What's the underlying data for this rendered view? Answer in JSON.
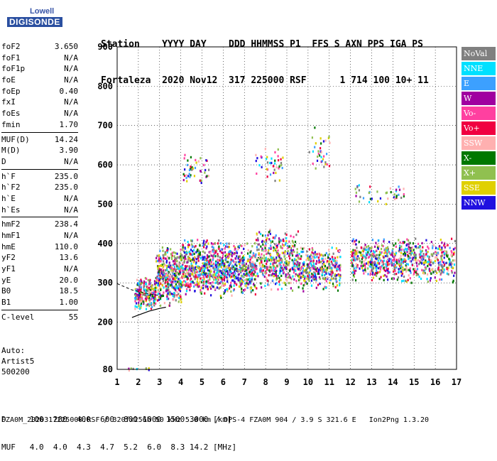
{
  "logo": {
    "brand": "Lowell",
    "name": "DIGISONDE"
  },
  "header": {
    "row1": "Station    YYYY DAY    DDD HHMMSS P1  FFS S AXN PPS IGA PS",
    "row2": "Fortaleza  2020 Nov12  317 225000 RSF      1 714 100 10+ 11"
  },
  "params": {
    "group1": [
      {
        "label": "foF2",
        "value": "3.650"
      },
      {
        "label": "foF1",
        "value": "N/A"
      },
      {
        "label": "foF1p",
        "value": "N/A"
      },
      {
        "label": "foE",
        "value": "N/A"
      },
      {
        "label": "foEp",
        "value": "0.40"
      },
      {
        "label": "fxI",
        "value": "N/A"
      },
      {
        "label": "foEs",
        "value": "N/A"
      },
      {
        "label": "fmin",
        "value": "1.70"
      }
    ],
    "group2": [
      {
        "label": "MUF(D)",
        "value": "14.24"
      },
      {
        "label": "M(D)",
        "value": "3.90"
      },
      {
        "label": "D",
        "value": "N/A"
      }
    ],
    "group3": [
      {
        "label": "h`F",
        "value": "235.0"
      },
      {
        "label": "h`F2",
        "value": "235.0"
      },
      {
        "label": "h`E",
        "value": "N/A"
      },
      {
        "label": "h`Es",
        "value": "N/A"
      }
    ],
    "group4": [
      {
        "label": "hmF2",
        "value": "238.4"
      },
      {
        "label": "hmF1",
        "value": "N/A"
      },
      {
        "label": "hmE",
        "value": "110.0"
      },
      {
        "label": "yF2",
        "value": "13.6"
      },
      {
        "label": "yF1",
        "value": "N/A"
      },
      {
        "label": "yE",
        "value": "20.0"
      },
      {
        "label": "B0",
        "value": "18.5"
      },
      {
        "label": "B1",
        "value": "1.00"
      }
    ],
    "group5": [
      {
        "label": "C-level",
        "value": "55"
      }
    ]
  },
  "auto": {
    "line1": "Auto:",
    "line2": "Artist5",
    "line3": "500200"
  },
  "legend": [
    {
      "label": "NoVal",
      "color": "#808080"
    },
    {
      "label": "NNE",
      "color": "#00e0ff"
    },
    {
      "label": "E",
      "color": "#3ca0ff"
    },
    {
      "label": "W",
      "color": "#a000a0"
    },
    {
      "label": "Vo-",
      "color": "#ff40a0"
    },
    {
      "label": "Vo+",
      "color": "#f00040"
    },
    {
      "label": "SSW",
      "color": "#ffb0b0"
    },
    {
      "label": "X-",
      "color": "#007800"
    },
    {
      "label": "X+",
      "color": "#90c050"
    },
    {
      "label": "SSE",
      "color": "#e0d000"
    },
    {
      "label": "NNW",
      "color": "#2010e0"
    }
  ],
  "chart_data": {
    "type": "scatter",
    "title": "",
    "xlabel": "",
    "ylabel": "",
    "xlim": [
      1,
      17
    ],
    "ylim": [
      80,
      900
    ],
    "x_ticks": [
      1,
      2,
      3,
      4,
      5,
      6,
      7,
      8,
      9,
      10,
      11,
      12,
      13,
      14,
      15,
      16,
      17
    ],
    "y_ticks": [
      80,
      200,
      300,
      400,
      500,
      600,
      700,
      800,
      900
    ],
    "grid": true,
    "legend_position": "right",
    "trace_line": [
      [
        1.7,
        212
      ],
      [
        2.0,
        218
      ],
      [
        2.5,
        228
      ],
      [
        3.0,
        235
      ],
      [
        3.3,
        238
      ]
    ],
    "trace_dashed": [
      [
        1.0,
        298
      ],
      [
        1.7,
        282
      ],
      [
        2.5,
        272
      ],
      [
        3.0,
        268
      ]
    ],
    "clusters": [
      {
        "fmin": 1.8,
        "fmax": 2.8,
        "hmin": 230,
        "hmax": 320,
        "n": 220
      },
      {
        "fmin": 2.8,
        "fmax": 4.0,
        "hmin": 240,
        "hmax": 400,
        "n": 380
      },
      {
        "fmin": 4.0,
        "fmax": 6.0,
        "hmin": 260,
        "hmax": 420,
        "n": 560
      },
      {
        "fmin": 6.0,
        "fmax": 7.5,
        "hmin": 265,
        "hmax": 410,
        "n": 380
      },
      {
        "fmin": 7.5,
        "fmax": 9.5,
        "hmin": 280,
        "hmax": 440,
        "n": 420
      },
      {
        "fmin": 9.5,
        "fmax": 11.5,
        "hmin": 280,
        "hmax": 400,
        "n": 360
      },
      {
        "fmin": 12.0,
        "fmax": 16.9,
        "hmin": 300,
        "hmax": 420,
        "n": 760
      },
      {
        "fmin": 4.0,
        "fmax": 5.3,
        "hmin": 540,
        "hmax": 640,
        "n": 45
      },
      {
        "fmin": 7.5,
        "fmax": 8.8,
        "hmin": 560,
        "hmax": 650,
        "n": 40
      },
      {
        "fmin": 10.0,
        "fmax": 11.0,
        "hmin": 560,
        "hmax": 710,
        "n": 35
      },
      {
        "fmin": 12.2,
        "fmax": 14.5,
        "hmin": 500,
        "hmax": 560,
        "n": 40
      },
      {
        "fmin": 1.5,
        "fmax": 2.5,
        "hmin": 80,
        "hmax": 86,
        "n": 10
      }
    ]
  },
  "footer": {
    "line1": "D     100  200  400  600  800 1000 1500 3000 [km]",
    "line2": "MUF   4.0  4.0  4.3  4.7  5.2  6.0  8.3 14.2 [MHz]",
    "line3": "FZA0M_2020317225000.RSF / 320fx256h 50 kHz 5.0 km / DPS-4 FZA0M 904 / 3.9 S 321.6 E   Ion2Png 1.3.20"
  }
}
